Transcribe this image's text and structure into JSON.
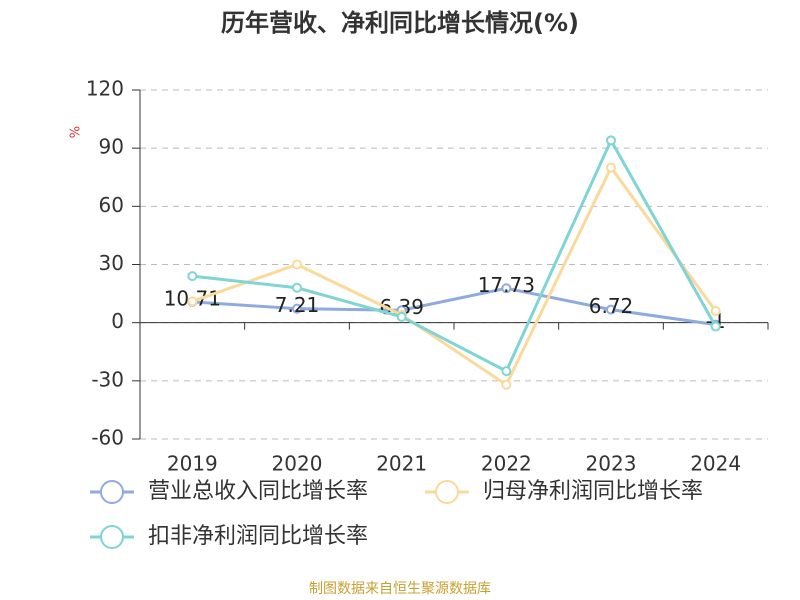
{
  "chart_data": {
    "type": "line",
    "title": "历年营收、净利同比增长情况(%)",
    "y_label": "%",
    "source": "制图数据来自恒生聚源数据库",
    "categories": [
      "2019",
      "2020",
      "2021",
      "2022",
      "2023",
      "2024"
    ],
    "series": [
      {
        "name": "营业总收入同比增长率",
        "color": "#8faadc",
        "values": [
          10.71,
          7.21,
          6.39,
          17.73,
          6.72,
          -1
        ],
        "show_labels": true
      },
      {
        "name": "归母净利润同比增长率",
        "color": "#fad99a",
        "values": [
          11,
          30,
          4,
          -32,
          80,
          6
        ],
        "show_labels": false
      },
      {
        "name": "扣非净利润同比增长率",
        "color": "#7fd4d4",
        "values": [
          24,
          18,
          3,
          -25,
          94,
          -2
        ],
        "show_labels": false
      }
    ],
    "ylim": [
      -60,
      120
    ],
    "yticks": [
      -60,
      -30,
      0,
      30,
      60,
      90,
      120
    ],
    "grid": true
  }
}
